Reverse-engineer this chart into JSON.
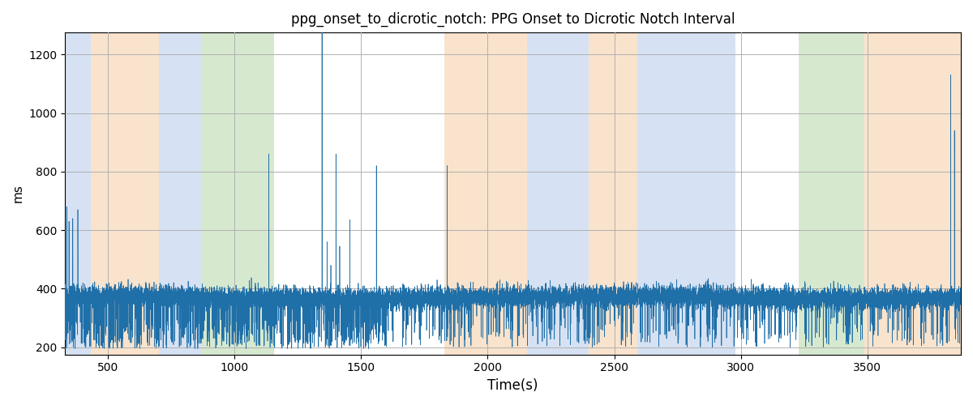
{
  "title": "ppg_onset_to_dicrotic_notch: PPG Onset to Dicrotic Notch Interval",
  "xlabel": "Time(s)",
  "ylabel": "ms",
  "xlim": [
    330,
    3870
  ],
  "ylim": [
    175,
    1275
  ],
  "yticks": [
    200,
    400,
    600,
    800,
    1000,
    1200
  ],
  "xticks": [
    500,
    1000,
    1500,
    2000,
    2500,
    3000,
    3500
  ],
  "signal_color": "#1f6fa8",
  "signal_linewidth": 0.5,
  "background_color": "#ffffff",
  "grid_color": "#b0b0b0",
  "bands": [
    {
      "start": 330,
      "end": 430,
      "color": "#aec6e8",
      "alpha": 0.5
    },
    {
      "start": 430,
      "end": 700,
      "color": "#f5c99a",
      "alpha": 0.5
    },
    {
      "start": 700,
      "end": 870,
      "color": "#aec6e8",
      "alpha": 0.5
    },
    {
      "start": 870,
      "end": 1155,
      "color": "#aed4a0",
      "alpha": 0.5
    },
    {
      "start": 1830,
      "end": 2155,
      "color": "#f5c99a",
      "alpha": 0.5
    },
    {
      "start": 2155,
      "end": 2400,
      "color": "#aec6e8",
      "alpha": 0.5
    },
    {
      "start": 2400,
      "end": 2590,
      "color": "#f5c99a",
      "alpha": 0.5
    },
    {
      "start": 2590,
      "end": 2980,
      "color": "#aec6e8",
      "alpha": 0.5
    },
    {
      "start": 3230,
      "end": 3490,
      "color": "#aed4a0",
      "alpha": 0.5
    },
    {
      "start": 3490,
      "end": 3870,
      "color": "#f5c99a",
      "alpha": 0.5
    }
  ],
  "base_value": 370,
  "noise_std": 18,
  "seed": 0
}
